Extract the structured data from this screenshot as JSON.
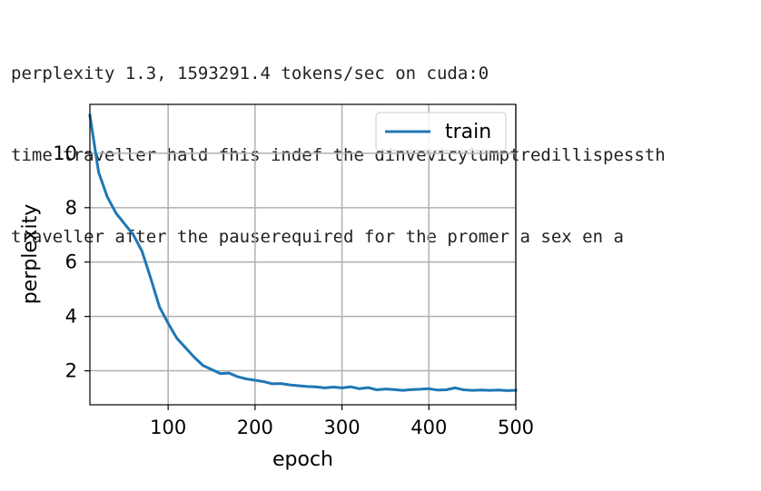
{
  "console": {
    "lines": [
      "perplexity 1.3, 1593291.4 tokens/sec on cuda:0",
      "time traveller hald fhis indef the dinvevicylumptredillispessth",
      "traveller after the pauserequired for the promer a sex en a"
    ]
  },
  "chart_data": {
    "type": "line",
    "title": "",
    "xlabel": "epoch",
    "ylabel": "perplexity",
    "xlim": [
      10,
      500
    ],
    "ylim": [
      0.75,
      11.8
    ],
    "xticks": [
      100,
      200,
      300,
      400,
      500
    ],
    "yticks": [
      2,
      4,
      6,
      8,
      10
    ],
    "grid": true,
    "legend": {
      "placement": "top-right",
      "entries": [
        "train"
      ]
    },
    "series": [
      {
        "name": "train",
        "color": "#1f77b4",
        "x": [
          10,
          20,
          30,
          40,
          50,
          60,
          70,
          80,
          90,
          100,
          110,
          120,
          130,
          140,
          150,
          160,
          170,
          180,
          190,
          200,
          210,
          220,
          230,
          240,
          250,
          260,
          270,
          280,
          290,
          300,
          310,
          320,
          330,
          340,
          350,
          360,
          370,
          380,
          390,
          400,
          410,
          420,
          430,
          440,
          450,
          460,
          470,
          480,
          490,
          500
        ],
        "y": [
          11.4,
          9.3,
          8.4,
          7.8,
          7.4,
          7.0,
          6.4,
          5.4,
          4.35,
          3.75,
          3.2,
          2.85,
          2.5,
          2.2,
          2.05,
          1.9,
          1.92,
          1.78,
          1.7,
          1.65,
          1.6,
          1.52,
          1.53,
          1.48,
          1.45,
          1.42,
          1.41,
          1.37,
          1.4,
          1.37,
          1.41,
          1.34,
          1.38,
          1.3,
          1.33,
          1.31,
          1.28,
          1.31,
          1.32,
          1.34,
          1.29,
          1.3,
          1.37,
          1.3,
          1.28,
          1.29,
          1.28,
          1.29,
          1.27,
          1.28
        ]
      }
    ]
  }
}
